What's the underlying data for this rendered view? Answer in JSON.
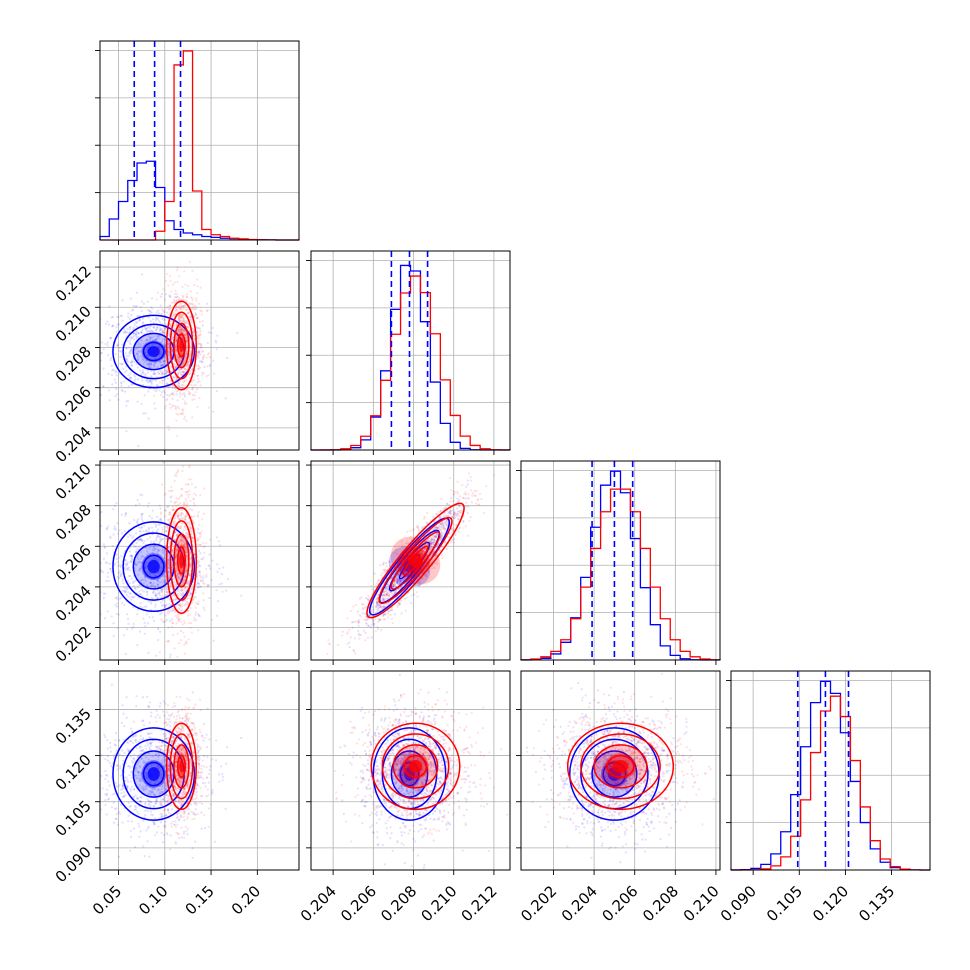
{
  "chart_data": {
    "type": "corner",
    "series": [
      {
        "name": "",
        "color": "#0000ff"
      },
      {
        "name": "",
        "color": "#ff0000"
      }
    ],
    "parameters": [
      {
        "range": [
          0.03,
          0.245
        ],
        "ticks": [
          "0.05",
          "0.10",
          "0.15",
          "0.20"
        ],
        "tick_values": [
          0.05,
          0.1,
          0.15,
          0.2
        ]
      },
      {
        "range": [
          0.2029,
          0.2128
        ],
        "ticks": [
          "0.204",
          "0.206",
          "0.208",
          "0.210",
          "0.212"
        ],
        "tick_values": [
          0.204,
          0.206,
          0.208,
          0.21,
          0.212
        ]
      },
      {
        "range": [
          0.2004,
          0.2102
        ],
        "ticks": [
          "0.202",
          "0.204",
          "0.206",
          "0.208",
          "0.210"
        ],
        "tick_values": [
          0.202,
          0.204,
          0.206,
          0.208,
          0.21
        ]
      },
      {
        "range": [
          0.0828,
          0.1475
        ],
        "ticks": [
          "0.090",
          "0.105",
          "0.120",
          "0.135"
        ],
        "tick_values": [
          0.09,
          0.105,
          0.12,
          0.135
        ]
      }
    ],
    "blue_stats": [
      {
        "mean": 0.088,
        "sd": 0.022,
        "quantiles": [
          0.067,
          0.089,
          0.117
        ]
      },
      {
        "mean": 0.2078,
        "sd": 0.0009,
        "quantiles": [
          0.2069,
          0.2078,
          0.2087
        ]
      },
      {
        "mean": 0.205,
        "sd": 0.0011,
        "quantiles": [
          0.2039,
          0.205,
          0.2059
        ]
      },
      {
        "mean": 0.114,
        "sd": 0.0075,
        "quantiles": [
          0.1045,
          0.1135,
          0.121
        ]
      }
    ],
    "red_stats": [
      {
        "mean": 0.118,
        "sd": 0.008
      },
      {
        "mean": 0.2081,
        "sd": 0.0011
      },
      {
        "mean": 0.2053,
        "sd": 0.0013
      },
      {
        "mean": 0.1165,
        "sd": 0.007
      }
    ],
    "correlations": {
      "1-2": 0.92,
      "1-3": 0.0,
      "2-3": 0.0,
      "0-1": 0.0,
      "0-2": 0.0,
      "0-3": 0.0
    },
    "histograms": {
      "0": {
        "bins": [
          0.03,
          0.04,
          0.05,
          0.06,
          0.07,
          0.08,
          0.09,
          0.1,
          0.11,
          0.12,
          0.13,
          0.14,
          0.15,
          0.16,
          0.17,
          0.18,
          0.19,
          0.2,
          0.21,
          0.22,
          0.23,
          0.245
        ],
        "blue": [
          2,
          12,
          22,
          34,
          44,
          45,
          30,
          11,
          6,
          4,
          3,
          2,
          1.5,
          1,
          0.8,
          0.4,
          0.2,
          0.1,
          0.05,
          0.02,
          0.01
        ],
        "red": [
          0,
          0,
          0,
          0,
          0,
          0,
          5,
          22,
          100,
          108,
          28,
          6,
          3,
          2,
          1,
          0.6,
          0.3,
          0.1,
          0.05,
          0.02,
          0
        ]
      }
    }
  }
}
